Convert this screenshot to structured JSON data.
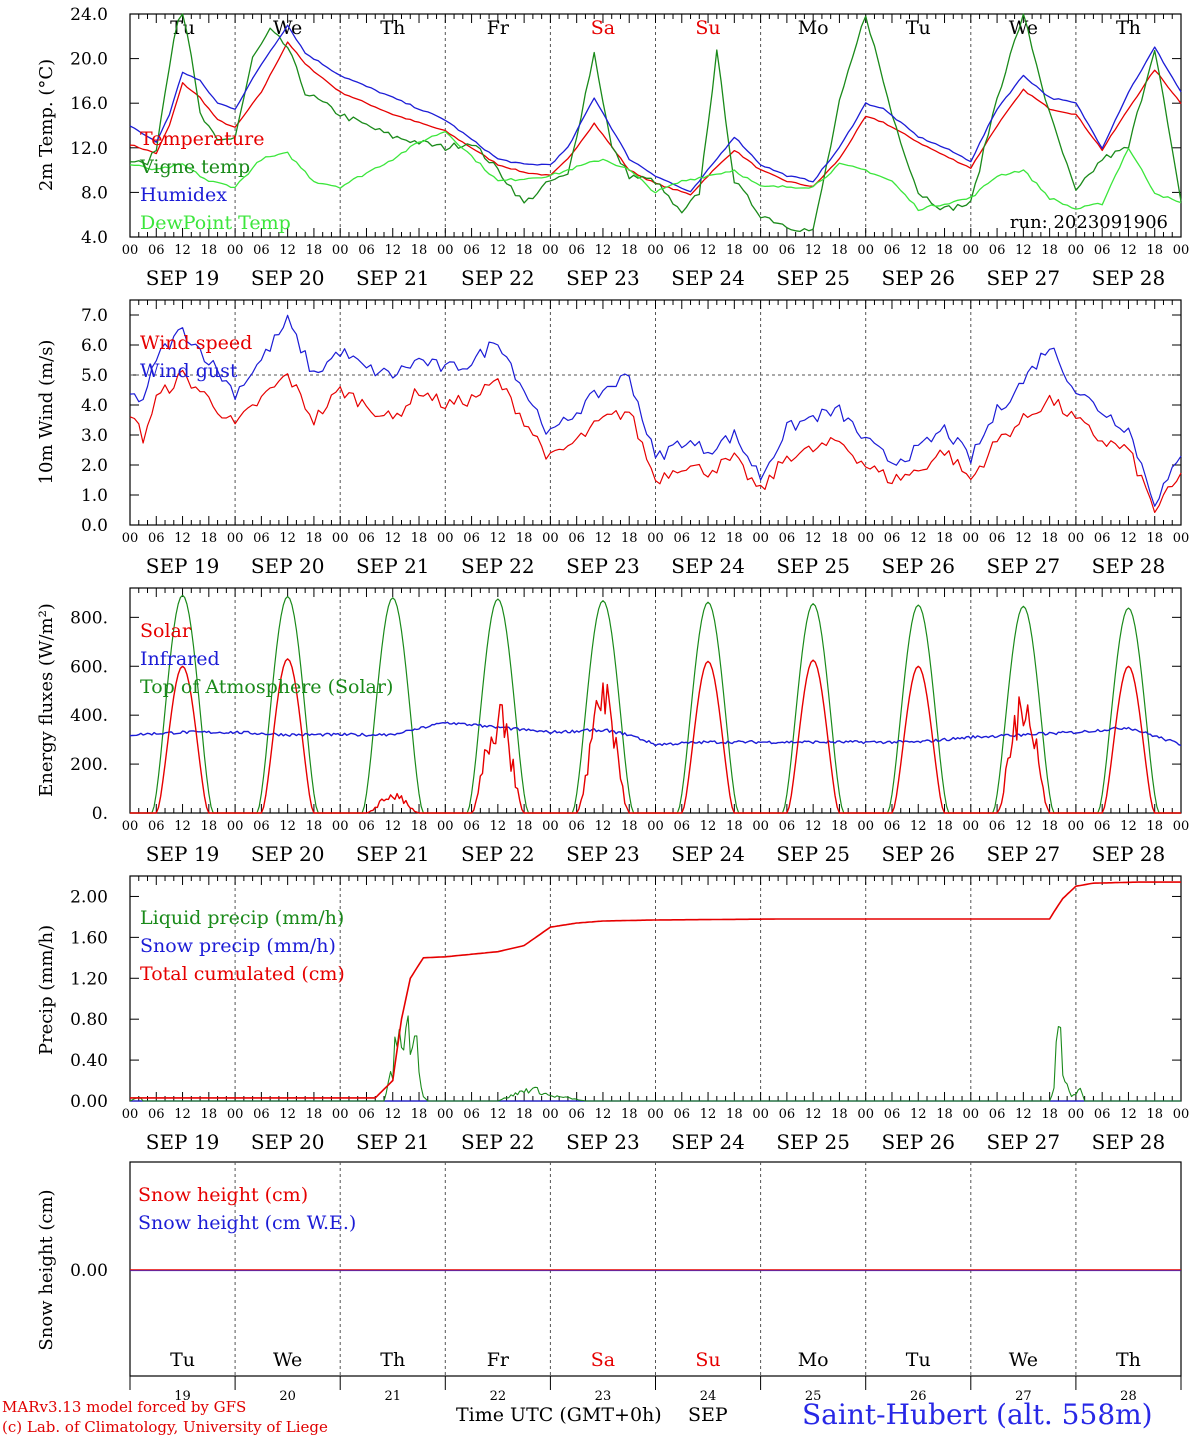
{
  "run_label": "run: 2023091906",
  "days": {
    "weekday_labels": [
      "Tu",
      "We",
      "Th",
      "Fr",
      "Sa",
      "Su",
      "Mo",
      "Tu",
      "We",
      "Th"
    ],
    "weekend_flags": [
      false,
      false,
      false,
      false,
      true,
      true,
      false,
      false,
      false,
      false
    ],
    "date_labels": [
      "SEP 19",
      "SEP 20",
      "SEP 21",
      "SEP 22",
      "SEP 23",
      "SEP 24",
      "SEP 25",
      "SEP 26",
      "SEP 27",
      "SEP 28"
    ],
    "day_numbers": [
      "19",
      "20",
      "21",
      "22",
      "23",
      "24",
      "25",
      "26",
      "27",
      "28"
    ],
    "hour_ticks": [
      "00",
      "06",
      "12",
      "18"
    ],
    "final_tick": "00"
  },
  "footer": {
    "credit_line1": "MARv3.13 model forced by GFS",
    "credit_line2": "(c) Lab. of Climatology, University of Liege",
    "x_title": "Time UTC (GMT+0h)",
    "x_month": "SEP",
    "station": "Saint-Hubert (alt. 558m)"
  },
  "colors": {
    "temperature": "#e60000",
    "vigne": "#1a8a1a",
    "humidex": "#1c1cd6",
    "dewpoint": "#3ce63c",
    "wind_speed": "#e60000",
    "wind_gust": "#1c1cd6",
    "solar": "#e60000",
    "infrared": "#1c1cd6",
    "toa": "#1a8a1a",
    "liquid": "#1a8a1a",
    "snow_precip": "#1c1cd6",
    "cumulated": "#e60000",
    "snow_cm": "#e60000",
    "snow_we": "#1c1cd6",
    "weekend": "#e60000",
    "station": "#2828e6"
  },
  "chart_data": [
    {
      "type": "line",
      "ylabel": "2m Temp. (°C)",
      "ylim": [
        4,
        24
      ],
      "yticks": [
        "4.0",
        "8.0",
        "12.0",
        "16.0",
        "20.0",
        "24.0"
      ],
      "legend": [
        "Temperature",
        "Vigne temp",
        "Humidex",
        "DewPoint Temp"
      ],
      "x_unit": "hours since Sep 19 00 UTC",
      "series": [
        {
          "name": "Temperature",
          "x": [
            0,
            6,
            9,
            12,
            16,
            20,
            24,
            30,
            36,
            40,
            48,
            60,
            72,
            84,
            90,
            96,
            100,
            106,
            114,
            120,
            128,
            132,
            138,
            144,
            150,
            156,
            162,
            168,
            172,
            180,
            186,
            192,
            198,
            204,
            210,
            216,
            222,
            228,
            234,
            240
          ],
          "values": [
            12.3,
            11.5,
            14,
            17.8,
            16.5,
            14.5,
            13.8,
            17,
            21.5,
            19.5,
            17,
            15,
            13.5,
            10.5,
            9.8,
            9.5,
            11,
            14.2,
            10,
            8.8,
            7.8,
            9.5,
            11.8,
            10,
            9,
            8.5,
            11,
            14.8,
            14.3,
            12.5,
            11.3,
            10.2,
            14,
            17.2,
            15.5,
            15,
            11.8,
            15.5,
            19,
            16
          ]
        },
        {
          "name": "Vigne temp",
          "x": [
            0,
            4,
            6,
            10,
            12,
            16,
            20,
            24,
            28,
            32,
            36,
            40,
            48,
            60,
            72,
            78,
            84,
            90,
            96,
            100,
            106,
            110,
            114,
            120,
            126,
            130,
            134,
            138,
            144,
            150,
            156,
            162,
            168,
            174,
            180,
            186,
            192,
            198,
            204,
            210,
            216,
            222,
            228,
            234,
            240
          ],
          "values": [
            11,
            10.5,
            12,
            22,
            25,
            15,
            12.5,
            13,
            20,
            22.5,
            21,
            17,
            15,
            13,
            12,
            12.5,
            10,
            7,
            9,
            9.5,
            20.5,
            12,
            9.5,
            9,
            6,
            8,
            20.5,
            9,
            6,
            5,
            4.5,
            16,
            24,
            15,
            8,
            6.5,
            7,
            16.5,
            24,
            15,
            8,
            11,
            12,
            21,
            7
          ]
        },
        {
          "name": "Humidex",
          "x": [
            0,
            6,
            9,
            12,
            16,
            20,
            24,
            30,
            36,
            40,
            48,
            60,
            72,
            84,
            90,
            96,
            100,
            106,
            114,
            120,
            128,
            132,
            138,
            144,
            150,
            156,
            162,
            168,
            172,
            180,
            186,
            192,
            198,
            204,
            210,
            216,
            222,
            228,
            234,
            240
          ],
          "values": [
            14,
            12.5,
            15,
            18.8,
            18,
            16,
            15.5,
            19.5,
            23,
            20.5,
            18.5,
            16.5,
            14.5,
            11,
            10.5,
            10.5,
            12,
            16.5,
            11,
            9.5,
            8,
            10,
            13,
            10.5,
            9.5,
            9,
            12,
            16,
            15.5,
            13,
            12,
            10.8,
            15.5,
            18.5,
            16.5,
            16,
            12,
            17,
            21,
            17
          ]
        },
        {
          "name": "DewPoint Temp",
          "x": [
            0,
            6,
            12,
            18,
            24,
            30,
            36,
            42,
            48,
            60,
            66,
            72,
            84,
            96,
            108,
            114,
            120,
            126,
            132,
            138,
            144,
            150,
            156,
            162,
            168,
            174,
            180,
            186,
            192,
            198,
            204,
            210,
            216,
            222,
            228,
            234,
            240
          ],
          "values": [
            10.5,
            10,
            10.5,
            9,
            8.5,
            11,
            11.5,
            9,
            8.5,
            11,
            12.5,
            13.5,
            9,
            9.5,
            11,
            10,
            8,
            9,
            9.5,
            10,
            8.5,
            8.5,
            8.5,
            10.5,
            10,
            9,
            6.5,
            7,
            7.5,
            9.5,
            10,
            7.5,
            6.5,
            7,
            12,
            8,
            7
          ]
        }
      ]
    },
    {
      "type": "line",
      "ylabel": "10m Wind (m/s)",
      "ylim": [
        0,
        7.5
      ],
      "yticks": [
        "0.0",
        "1.0",
        "2.0",
        "3.0",
        "4.0",
        "5.0",
        "6.0",
        "7.0"
      ],
      "reference_line": 5.0,
      "legend": [
        "Wind speed",
        "Wind gust"
      ],
      "x_unit": "hours since Sep 19 00 UTC",
      "series": [
        {
          "name": "Wind speed",
          "x": [
            0,
            3,
            6,
            12,
            18,
            24,
            30,
            36,
            42,
            48,
            54,
            60,
            66,
            72,
            78,
            84,
            90,
            96,
            102,
            108,
            114,
            120,
            126,
            132,
            138,
            144,
            150,
            156,
            162,
            168,
            174,
            180,
            186,
            192,
            198,
            204,
            210,
            216,
            222,
            228,
            234,
            240
          ],
          "values": [
            3.8,
            2.9,
            4.2,
            5,
            4.2,
            3.3,
            4.2,
            5,
            3.5,
            4.5,
            4.0,
            3.5,
            4.5,
            4.0,
            4.2,
            4.8,
            3.5,
            2.2,
            2.8,
            3.5,
            3.8,
            1.5,
            2.0,
            1.8,
            2.2,
            1.1,
            2.3,
            2.5,
            2.8,
            2.0,
            1.5,
            1.8,
            2.5,
            1.5,
            2.8,
            3.5,
            4.2,
            3.5,
            2.8,
            2.5,
            0.5,
            1.6
          ]
        },
        {
          "name": "Wind gust",
          "x": [
            0,
            3,
            6,
            12,
            18,
            24,
            30,
            36,
            42,
            48,
            54,
            60,
            66,
            72,
            78,
            84,
            90,
            96,
            102,
            108,
            114,
            120,
            126,
            132,
            138,
            144,
            150,
            156,
            162,
            168,
            174,
            180,
            186,
            192,
            198,
            204,
            210,
            216,
            222,
            228,
            234,
            240
          ],
          "values": [
            4.5,
            4.0,
            5.6,
            6.5,
            5.5,
            4.4,
            5.5,
            6.8,
            5.0,
            5.8,
            5.2,
            5.0,
            5.5,
            5.2,
            5.4,
            6.2,
            4.5,
            3.0,
            3.8,
            4.5,
            5.0,
            2.2,
            2.8,
            2.5,
            3.0,
            1.6,
            3.2,
            3.6,
            3.8,
            2.8,
            2.1,
            2.5,
            3.2,
            2.2,
            3.8,
            4.8,
            6.0,
            4.5,
            3.8,
            3.2,
            0.8,
            2.2
          ]
        }
      ]
    },
    {
      "type": "line",
      "ylabel": "Energy fluxes (W/m²)",
      "ylim": [
        0,
        920
      ],
      "yticks": [
        "0.",
        "200.",
        "400.",
        "600.",
        "800."
      ],
      "legend": [
        "Solar",
        "Infrared",
        "Top of Atmosphere (Solar)"
      ],
      "x_unit": "hours since Sep 19 00 UTC",
      "toa_peak": [
        890,
        885,
        880,
        875,
        868,
        862,
        856,
        850,
        845,
        838
      ],
      "solar_peak": [
        600,
        630,
        90,
        490,
        560,
        620,
        625,
        600,
        560,
        600
      ],
      "infrared": {
        "x": [
          0,
          12,
          24,
          36,
          48,
          60,
          72,
          84,
          96,
          108,
          114,
          120,
          132,
          144,
          156,
          168,
          180,
          192,
          204,
          216,
          228,
          240
        ],
        "values": [
          320,
          330,
          330,
          320,
          320,
          320,
          370,
          350,
          330,
          340,
          320,
          280,
          290,
          290,
          290,
          290,
          290,
          310,
          320,
          330,
          350,
          280
        ]
      }
    },
    {
      "type": "line",
      "ylabel": "Precip (mm/h)",
      "ylim": [
        0,
        2.2
      ],
      "yticks": [
        "0.00",
        "0.40",
        "0.80",
        "1.20",
        "1.60",
        "2.00"
      ],
      "legend": [
        "Liquid precip (mm/h)",
        "Snow precip (mm/h)",
        "Total cumulated (cm)"
      ],
      "x_unit": "hours since Sep 19 00 UTC",
      "series": [
        {
          "name": "Total cumulated (cm)",
          "x": [
            0,
            56,
            60,
            62,
            64,
            67,
            72,
            84,
            90,
            96,
            102,
            108,
            120,
            150,
            180,
            200,
            210,
            211,
            213,
            216,
            220,
            230,
            240
          ],
          "values": [
            0.03,
            0.03,
            0.2,
            0.8,
            1.2,
            1.4,
            1.41,
            1.46,
            1.52,
            1.7,
            1.74,
            1.76,
            1.77,
            1.78,
            1.78,
            1.78,
            1.78,
            1.85,
            1.98,
            2.1,
            2.13,
            2.14,
            2.14
          ]
        },
        {
          "name": "Liquid precip (mm/h)",
          "x": [
            0,
            2,
            3,
            4,
            58,
            60,
            61,
            62,
            63,
            64,
            65,
            66,
            67,
            68,
            84,
            90,
            92,
            96,
            100,
            104,
            210,
            211,
            212,
            213,
            214,
            215,
            216,
            217,
            218,
            220
          ],
          "values": [
            0,
            0.05,
            0,
            0,
            0,
            0.3,
            0.7,
            0.5,
            0.8,
            0.6,
            0.85,
            0.3,
            0.05,
            0,
            0,
            0.1,
            0.12,
            0.05,
            0.03,
            0,
            0,
            0.1,
            1.0,
            0.2,
            0.15,
            0.05,
            0.08,
            0.1,
            0,
            0
          ]
        },
        {
          "name": "Snow precip (mm/h)",
          "x": [
            0,
            240
          ],
          "values": [
            0,
            0
          ]
        }
      ]
    },
    {
      "type": "line",
      "ylabel": "Snow height (cm)",
      "yticks": [
        "0.00"
      ],
      "legend": [
        "Snow height (cm)",
        "Snow height (cm W.E.)"
      ],
      "series": [
        {
          "name": "Snow height (cm)",
          "x": [
            0,
            240
          ],
          "values": [
            0,
            0
          ]
        },
        {
          "name": "Snow height (cm W.E.)",
          "x": [
            0,
            240
          ],
          "values": [
            0,
            0
          ]
        }
      ]
    }
  ]
}
